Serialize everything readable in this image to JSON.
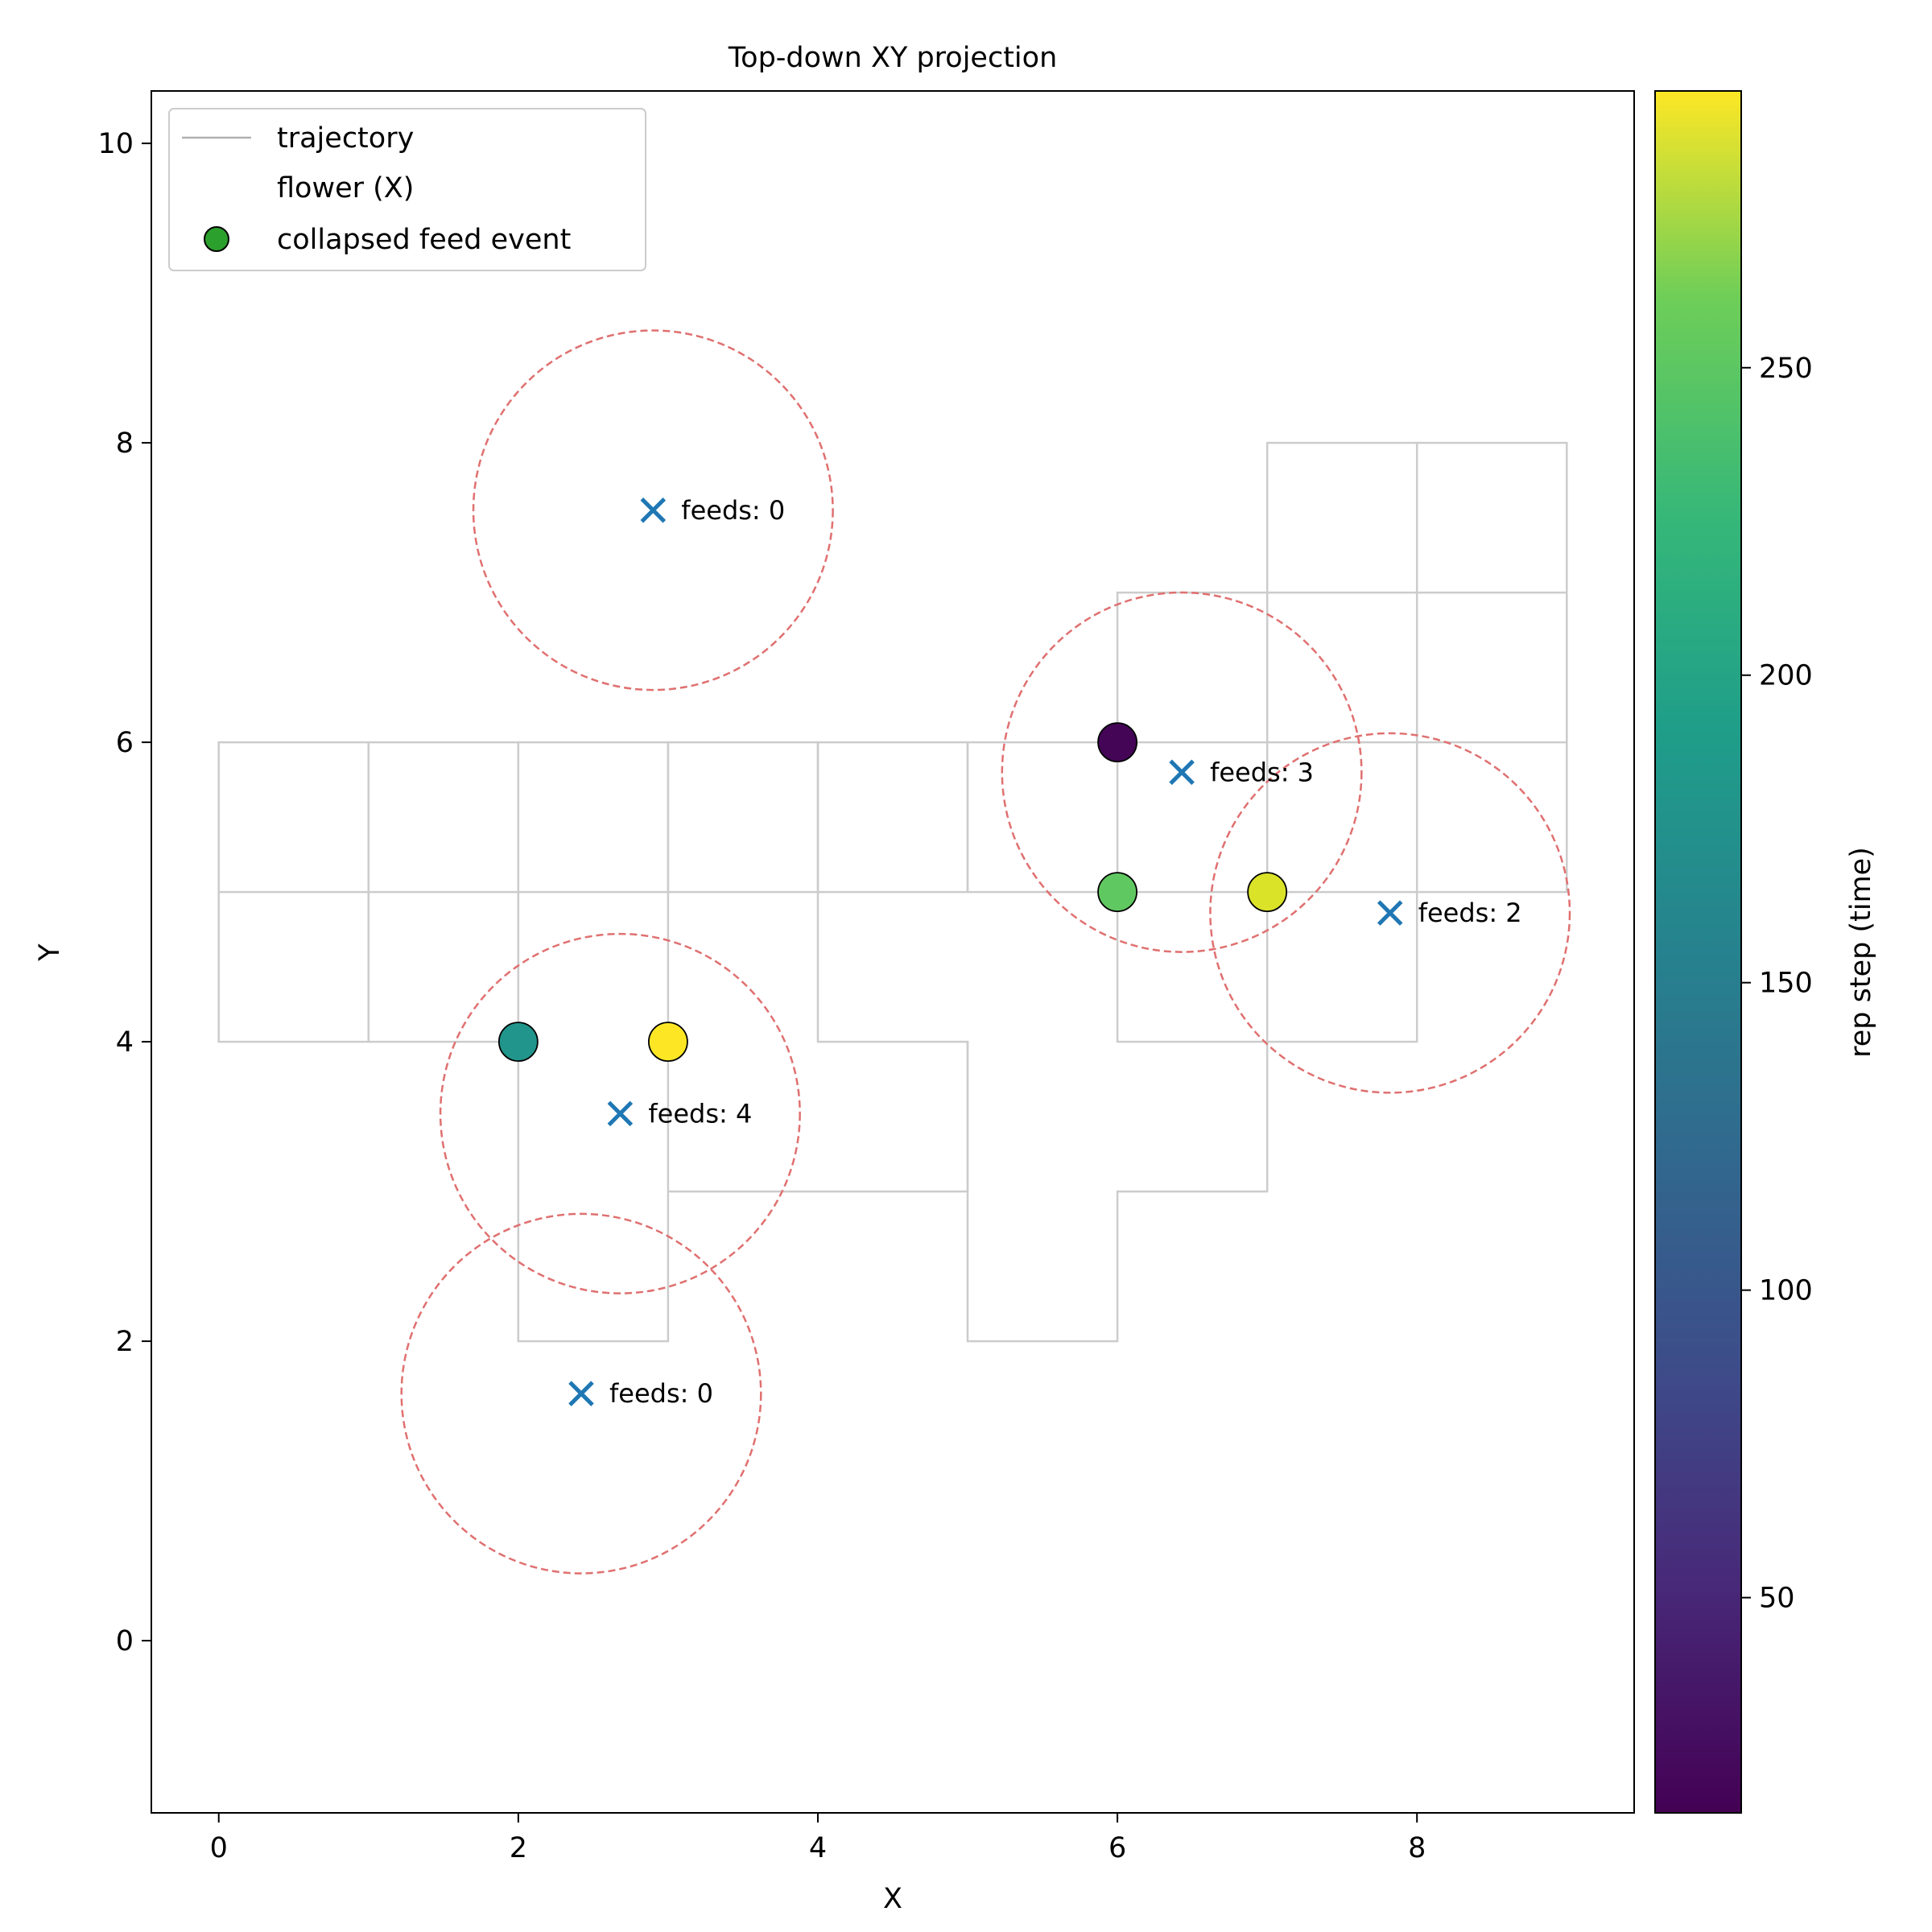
{
  "chart_data": {
    "type": "scatter",
    "title": "Top-down XY projection",
    "xlabel": "X",
    "ylabel": "Y",
    "xlim": [
      -0.45,
      9.45
    ],
    "ylim": [
      -1.15,
      10.35
    ],
    "xticks": [
      0,
      2,
      4,
      6,
      8
    ],
    "yticks": [
      0,
      2,
      4,
      6,
      8,
      10
    ],
    "grid": false,
    "legend_position": "top-left",
    "legend": [
      {
        "label": "trajectory",
        "kind": "line",
        "color": "#b0b0b0"
      },
      {
        "label": "flower (X)",
        "kind": "none"
      },
      {
        "label": "collapsed feed event",
        "kind": "marker",
        "color": "#2ca02c"
      }
    ],
    "trajectory_color": "#cccccc",
    "trajectory": [
      [
        [
          0,
          5
        ],
        [
          0,
          6
        ],
        [
          1,
          6
        ],
        [
          1,
          5
        ],
        [
          0,
          5
        ]
      ],
      [
        [
          0,
          5
        ],
        [
          0,
          4
        ],
        [
          1,
          4
        ],
        [
          1,
          5
        ]
      ],
      [
        [
          1,
          5
        ],
        [
          1,
          6
        ],
        [
          2,
          6
        ],
        [
          2,
          5
        ],
        [
          1,
          5
        ]
      ],
      [
        [
          1,
          5
        ],
        [
          1,
          4
        ],
        [
          2,
          4
        ],
        [
          2,
          5
        ]
      ],
      [
        [
          2,
          5
        ],
        [
          2,
          6
        ],
        [
          3,
          6
        ],
        [
          3,
          5
        ],
        [
          2,
          5
        ]
      ],
      [
        [
          2,
          5
        ],
        [
          2,
          4
        ],
        [
          2,
          2
        ],
        [
          3,
          2
        ],
        [
          3,
          3
        ],
        [
          3,
          5
        ]
      ],
      [
        [
          3,
          5
        ],
        [
          3,
          6
        ],
        [
          4,
          6
        ],
        [
          4,
          5
        ],
        [
          3,
          5
        ]
      ],
      [
        [
          3,
          3
        ],
        [
          5,
          3
        ],
        [
          5,
          4
        ],
        [
          4,
          4
        ],
        [
          4,
          5
        ]
      ],
      [
        [
          4,
          5
        ],
        [
          4,
          6
        ],
        [
          5,
          6
        ],
        [
          5,
          5
        ],
        [
          4,
          5
        ]
      ],
      [
        [
          5,
          5
        ],
        [
          5,
          6
        ],
        [
          6,
          6
        ],
        [
          6,
          5
        ],
        [
          5,
          5
        ]
      ],
      [
        [
          5,
          4
        ],
        [
          5,
          2
        ],
        [
          6,
          2
        ],
        [
          6,
          3
        ],
        [
          7,
          3
        ],
        [
          7,
          5
        ]
      ],
      [
        [
          6,
          5
        ],
        [
          6,
          4
        ],
        [
          8,
          4
        ],
        [
          8,
          5
        ]
      ],
      [
        [
          6,
          6
        ],
        [
          6,
          7
        ],
        [
          7,
          7
        ],
        [
          7,
          6
        ]
      ],
      [
        [
          6,
          6
        ],
        [
          7,
          6
        ],
        [
          7,
          5
        ],
        [
          6,
          5
        ]
      ],
      [
        [
          7,
          6
        ],
        [
          7,
          8
        ],
        [
          8,
          8
        ],
        [
          8,
          6
        ]
      ],
      [
        [
          7,
          6
        ],
        [
          8,
          6
        ],
        [
          8,
          5
        ],
        [
          7,
          5
        ]
      ],
      [
        [
          7,
          7
        ],
        [
          9,
          7
        ],
        [
          9,
          6
        ],
        [
          8,
          6
        ]
      ],
      [
        [
          8,
          8
        ],
        [
          9,
          8
        ],
        [
          9,
          5
        ],
        [
          8,
          5
        ]
      ]
    ],
    "flowers": [
      {
        "x": 2.9,
        "y": 7.55,
        "radius": 1.2,
        "label": "feeds: 0"
      },
      {
        "x": 6.43,
        "y": 5.8,
        "radius": 1.2,
        "label": "feeds: 3"
      },
      {
        "x": 7.82,
        "y": 4.86,
        "radius": 1.2,
        "label": "feeds: 2"
      },
      {
        "x": 2.68,
        "y": 3.52,
        "radius": 1.2,
        "label": "feeds: 4"
      },
      {
        "x": 2.42,
        "y": 1.65,
        "radius": 1.2,
        "label": "feeds: 0"
      }
    ],
    "flower_marker_color": "#1f77b4",
    "flower_radius_color": "#e07070",
    "feed_events": [
      {
        "x": 6,
        "y": 6,
        "t": 18
      },
      {
        "x": 6,
        "y": 5,
        "t": 225
      },
      {
        "x": 7,
        "y": 5,
        "t": 280
      },
      {
        "x": 2,
        "y": 4,
        "t": 160
      },
      {
        "x": 3,
        "y": 4,
        "t": 295
      }
    ],
    "colorbar": {
      "label": "rep step (time)",
      "colormap": "viridis",
      "range": [
        15,
        295
      ],
      "ticks": [
        50,
        100,
        150,
        200,
        250
      ]
    }
  }
}
